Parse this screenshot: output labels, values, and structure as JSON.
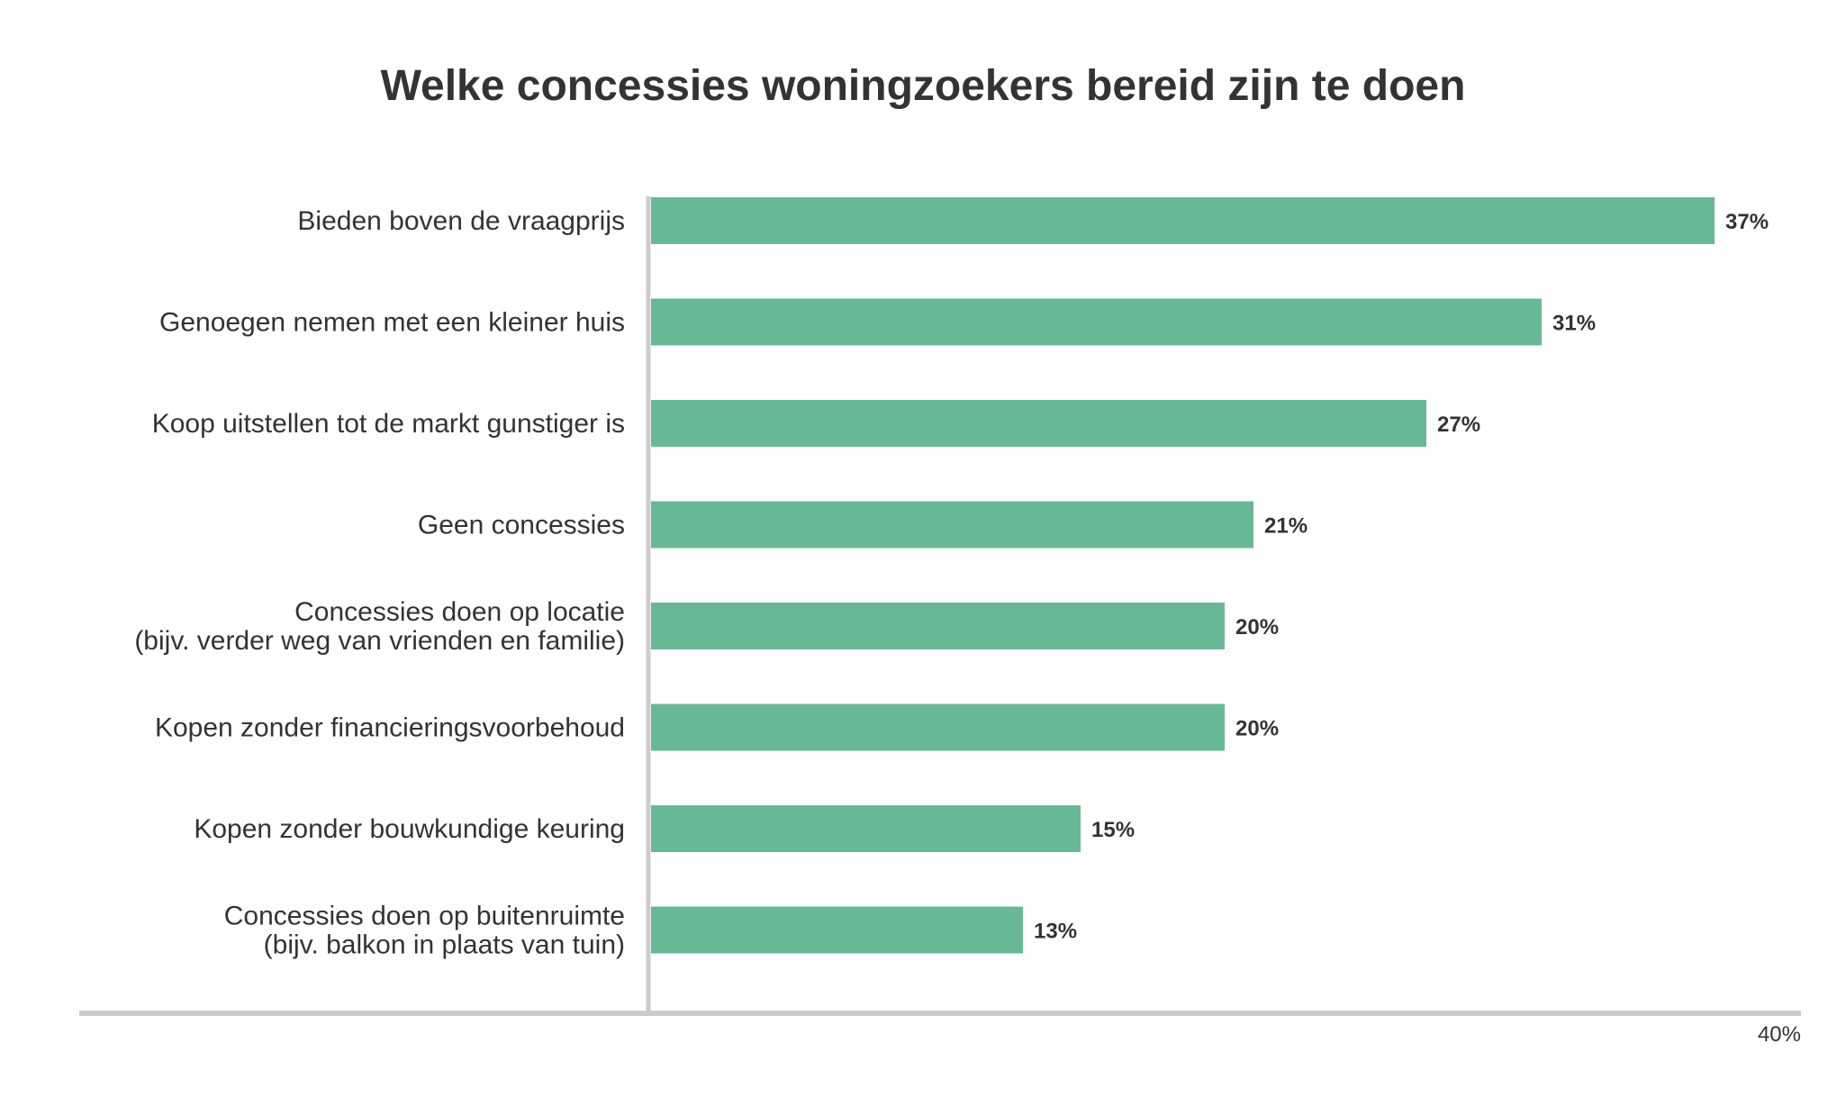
{
  "chart_data": {
    "type": "bar",
    "orientation": "horizontal",
    "title": "Welke concessies woningzoekers bereid zijn te doen",
    "xlabel": "",
    "ylabel": "",
    "categories": [
      [
        "Bieden boven de vraagprijs"
      ],
      [
        "Genoegen nemen met een kleiner huis"
      ],
      [
        "Koop uitstellen tot de markt gunstiger is"
      ],
      [
        "Geen concessies"
      ],
      [
        "Concessies doen op locatie",
        "(bijv. verder weg van vrienden en familie)"
      ],
      [
        "Kopen zonder financieringsvoorbehoud"
      ],
      [
        "Kopen zonder bouwkundige keuring"
      ],
      [
        "Concessies doen op buitenruimte",
        "(bijv. balkon in plaats van tuin)"
      ]
    ],
    "values": [
      37,
      31,
      27,
      21,
      20,
      20,
      15,
      13
    ],
    "value_labels": [
      "37%",
      "31%",
      "27%",
      "21%",
      "20%",
      "20%",
      "15%",
      "13%"
    ],
    "xlim": [
      0,
      40
    ],
    "x_ticks": [
      "40%"
    ],
    "grid": false,
    "legend": "none",
    "colors": {
      "bar": "#67b995",
      "axis": "#cccccc",
      "text": "#333333"
    }
  }
}
